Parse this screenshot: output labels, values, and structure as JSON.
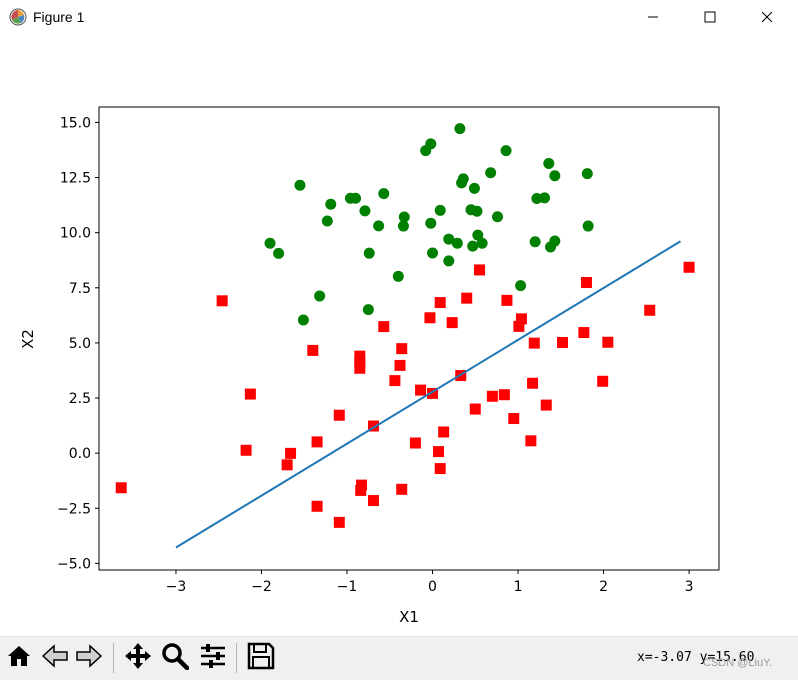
{
  "window": {
    "title": "Figure 1",
    "icons": [
      "app-icon",
      "minimize-icon",
      "maximize-icon",
      "close-icon"
    ]
  },
  "toolbar": {
    "buttons": [
      {
        "name": "home-button",
        "icon": "home-icon"
      },
      {
        "name": "back-button",
        "icon": "back-arrow-icon"
      },
      {
        "name": "forward-button",
        "icon": "forward-arrow-icon"
      },
      {
        "name": "pan-button",
        "icon": "move-icon"
      },
      {
        "name": "zoom-button",
        "icon": "zoom-icon"
      },
      {
        "name": "configure-subplots-button",
        "icon": "sliders-icon"
      },
      {
        "name": "save-button",
        "icon": "save-icon"
      }
    ],
    "coords": "x=-3.07 y=15.60"
  },
  "watermark": "CSDN @LiuY.",
  "chart_data": {
    "type": "scatter",
    "title": "",
    "xlabel": "X1",
    "ylabel": "X2",
    "xlim": [
      -3.9,
      3.35
    ],
    "ylim": [
      -5.3,
      15.7
    ],
    "xticks": [
      -3,
      -2,
      -1,
      0,
      1,
      2,
      3
    ],
    "xtick_labels": [
      "−3",
      "−2",
      "−1",
      "0",
      "1",
      "2",
      "3"
    ],
    "yticks": [
      -5.0,
      -2.5,
      0.0,
      2.5,
      5.0,
      7.5,
      10.0,
      12.5,
      15.0
    ],
    "ytick_labels": [
      "−5.0",
      "−2.5",
      "0.0",
      "2.5",
      "5.0",
      "7.5",
      "10.0",
      "12.5",
      "15.0"
    ],
    "grid": false,
    "series": [
      {
        "color": "#008000",
        "marker": "circle",
        "points": [
          [
            0.32,
            14.72
          ],
          [
            -0.02,
            14.03
          ],
          [
            -0.08,
            13.72
          ],
          [
            0.86,
            13.72
          ],
          [
            1.36,
            13.14
          ],
          [
            1.43,
            12.58
          ],
          [
            1.81,
            12.68
          ],
          [
            0.68,
            12.72
          ],
          [
            0.36,
            12.44
          ],
          [
            0.34,
            12.26
          ],
          [
            0.49,
            12.01
          ],
          [
            -1.55,
            12.15
          ],
          [
            -0.57,
            11.77
          ],
          [
            -0.96,
            11.56
          ],
          [
            -0.9,
            11.56
          ],
          [
            -1.19,
            11.29
          ],
          [
            1.22,
            11.55
          ],
          [
            1.31,
            11.58
          ],
          [
            0.45,
            11.04
          ],
          [
            0.52,
            10.97
          ],
          [
            0.09,
            11.01
          ],
          [
            -0.79,
            10.99
          ],
          [
            -0.33,
            10.71
          ],
          [
            0.76,
            10.72
          ],
          [
            -1.23,
            10.53
          ],
          [
            -0.02,
            10.43
          ],
          [
            -0.63,
            10.31
          ],
          [
            -0.34,
            10.3
          ],
          [
            1.82,
            10.3
          ],
          [
            0.53,
            9.89
          ],
          [
            0.19,
            9.71
          ],
          [
            0.58,
            9.52
          ],
          [
            0.29,
            9.52
          ],
          [
            1.2,
            9.59
          ],
          [
            1.43,
            9.62
          ],
          [
            1.38,
            9.35
          ],
          [
            -1.9,
            9.52
          ],
          [
            -1.8,
            9.06
          ],
          [
            0.47,
            9.39
          ],
          [
            -0.74,
            9.07
          ],
          [
            0.0,
            9.08
          ],
          [
            0.19,
            8.72
          ],
          [
            -0.4,
            8.02
          ],
          [
            1.03,
            7.6
          ],
          [
            -1.32,
            7.13
          ],
          [
            -0.75,
            6.51
          ],
          [
            -1.51,
            6.04
          ]
        ]
      },
      {
        "color": "#ff0000",
        "marker": "square",
        "points": [
          [
            3.0,
            8.43
          ],
          [
            0.55,
            8.31
          ],
          [
            1.8,
            7.74
          ],
          [
            0.4,
            7.03
          ],
          [
            0.87,
            6.93
          ],
          [
            -2.46,
            6.91
          ],
          [
            0.09,
            6.83
          ],
          [
            2.54,
            6.48
          ],
          [
            -0.03,
            6.14
          ],
          [
            1.04,
            6.09
          ],
          [
            0.23,
            5.92
          ],
          [
            1.01,
            5.75
          ],
          [
            -0.57,
            5.74
          ],
          [
            1.77,
            5.47
          ],
          [
            2.05,
            5.03
          ],
          [
            1.52,
            5.02
          ],
          [
            1.19,
            4.99
          ],
          [
            -1.4,
            4.66
          ],
          [
            -0.36,
            4.74
          ],
          [
            -0.85,
            4.4
          ],
          [
            -0.85,
            4.12
          ],
          [
            -0.85,
            3.85
          ],
          [
            -0.38,
            3.98
          ],
          [
            -0.44,
            3.29
          ],
          [
            1.99,
            3.26
          ],
          [
            1.17,
            3.17
          ],
          [
            0.33,
            3.52
          ],
          [
            -0.14,
            2.86
          ],
          [
            -2.13,
            2.68
          ],
          [
            0.7,
            2.58
          ],
          [
            0.84,
            2.65
          ],
          [
            0.0,
            2.71
          ],
          [
            1.33,
            2.18
          ],
          [
            0.5,
            2.0
          ],
          [
            0.95,
            1.57
          ],
          [
            -1.09,
            1.72
          ],
          [
            -0.69,
            1.23
          ],
          [
            0.13,
            0.96
          ],
          [
            -0.2,
            0.46
          ],
          [
            1.15,
            0.56
          ],
          [
            -1.35,
            0.51
          ],
          [
            -2.18,
            0.13
          ],
          [
            -1.66,
            -0.01
          ],
          [
            0.07,
            0.07
          ],
          [
            -1.7,
            -0.53
          ],
          [
            0.09,
            -0.7
          ],
          [
            -3.64,
            -1.57
          ],
          [
            -0.83,
            -1.45
          ],
          [
            -0.84,
            -1.69
          ],
          [
            -0.36,
            -1.64
          ],
          [
            -0.69,
            -2.15
          ],
          [
            -1.35,
            -2.41
          ],
          [
            -1.09,
            -3.14
          ]
        ]
      }
    ],
    "line": {
      "color": "#1f77b4",
      "x": [
        -3.0,
        2.9
      ],
      "y": [
        -4.28,
        9.61
      ]
    }
  }
}
